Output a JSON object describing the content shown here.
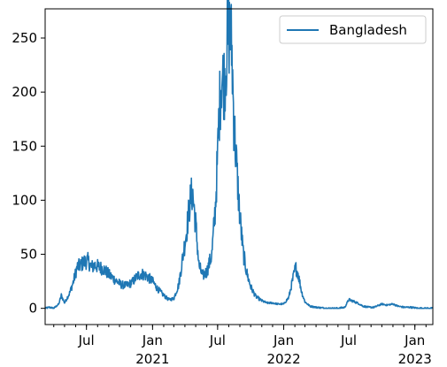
{
  "chart_data": {
    "type": "line",
    "title": "",
    "xlabel": "",
    "ylabel": "",
    "xlim": [
      "2020-03-08",
      "2023-02-20"
    ],
    "ylim": [
      -15,
      277
    ],
    "yticks": [
      0,
      50,
      100,
      150,
      200,
      250
    ],
    "xticks": [
      {
        "date": "2020-07-01",
        "label": "Jul",
        "year": ""
      },
      {
        "date": "2021-01-01",
        "label": "Jan",
        "year": "2021"
      },
      {
        "date": "2021-07-01",
        "label": "Jul",
        "year": ""
      },
      {
        "date": "2022-01-01",
        "label": "Jan",
        "year": "2022"
      },
      {
        "date": "2022-07-01",
        "label": "Jul",
        "year": ""
      },
      {
        "date": "2023-01-01",
        "label": "Jan",
        "year": "2023"
      }
    ],
    "legend": {
      "position": "top-right"
    },
    "series": [
      {
        "name": "Bangladesh",
        "color": "#1f77b4",
        "points": [
          [
            "2020-03-08",
            0
          ],
          [
            "2020-03-20",
            1
          ],
          [
            "2020-04-01",
            0
          ],
          [
            "2020-04-15",
            4
          ],
          [
            "2020-04-22",
            12
          ],
          [
            "2020-05-01",
            5
          ],
          [
            "2020-05-15",
            14
          ],
          [
            "2020-05-25",
            24
          ],
          [
            "2020-06-05",
            38
          ],
          [
            "2020-06-15",
            40
          ],
          [
            "2020-06-25",
            43
          ],
          [
            "2020-07-05",
            44
          ],
          [
            "2020-07-15",
            38
          ],
          [
            "2020-07-25",
            40
          ],
          [
            "2020-08-05",
            38
          ],
          [
            "2020-08-15",
            37
          ],
          [
            "2020-08-25",
            34
          ],
          [
            "2020-09-05",
            30
          ],
          [
            "2020-09-20",
            26
          ],
          [
            "2020-10-05",
            22
          ],
          [
            "2020-10-20",
            21
          ],
          [
            "2020-11-05",
            24
          ],
          [
            "2020-11-20",
            30
          ],
          [
            "2020-12-01",
            32
          ],
          [
            "2020-12-15",
            30
          ],
          [
            "2021-01-01",
            25
          ],
          [
            "2021-01-15",
            18
          ],
          [
            "2021-02-01",
            12
          ],
          [
            "2021-02-15",
            8
          ],
          [
            "2021-03-01",
            9
          ],
          [
            "2021-03-15",
            22
          ],
          [
            "2021-03-25",
            45
          ],
          [
            "2021-04-05",
            70
          ],
          [
            "2021-04-15",
            98
          ],
          [
            "2021-04-22",
            108
          ],
          [
            "2021-05-01",
            78
          ],
          [
            "2021-05-10",
            40
          ],
          [
            "2021-05-20",
            30
          ],
          [
            "2021-06-01",
            34
          ],
          [
            "2021-06-15",
            50
          ],
          [
            "2021-06-25",
            95
          ],
          [
            "2021-07-01",
            140
          ],
          [
            "2021-07-05",
            180
          ],
          [
            "2021-07-12",
            215
          ],
          [
            "2021-07-20",
            210
          ],
          [
            "2021-07-28",
            245
          ],
          [
            "2021-08-05",
            262
          ],
          [
            "2021-08-10",
            235
          ],
          [
            "2021-08-15",
            175
          ],
          [
            "2021-08-25",
            120
          ],
          [
            "2021-09-01",
            85
          ],
          [
            "2021-09-10",
            52
          ],
          [
            "2021-09-20",
            33
          ],
          [
            "2021-10-01",
            20
          ],
          [
            "2021-10-15",
            11
          ],
          [
            "2021-11-01",
            7
          ],
          [
            "2021-11-15",
            5
          ],
          [
            "2021-12-01",
            5
          ],
          [
            "2021-12-15",
            4
          ],
          [
            "2022-01-01",
            4
          ],
          [
            "2022-01-15",
            10
          ],
          [
            "2022-01-25",
            25
          ],
          [
            "2022-02-03",
            38
          ],
          [
            "2022-02-10",
            32
          ],
          [
            "2022-02-20",
            15
          ],
          [
            "2022-03-01",
            6
          ],
          [
            "2022-03-15",
            2
          ],
          [
            "2022-04-01",
            1
          ],
          [
            "2022-05-01",
            0
          ],
          [
            "2022-06-01",
            0
          ],
          [
            "2022-06-20",
            1
          ],
          [
            "2022-07-01",
            8
          ],
          [
            "2022-07-10",
            7
          ],
          [
            "2022-07-25",
            5
          ],
          [
            "2022-08-10",
            2
          ],
          [
            "2022-08-25",
            1
          ],
          [
            "2022-09-10",
            1
          ],
          [
            "2022-10-01",
            4
          ],
          [
            "2022-10-15",
            3
          ],
          [
            "2022-11-01",
            4
          ],
          [
            "2022-11-15",
            2
          ],
          [
            "2022-12-01",
            1
          ],
          [
            "2022-12-20",
            1
          ],
          [
            "2023-01-10",
            0
          ],
          [
            "2023-01-25",
            0
          ],
          [
            "2023-02-20",
            0
          ]
        ]
      }
    ]
  }
}
